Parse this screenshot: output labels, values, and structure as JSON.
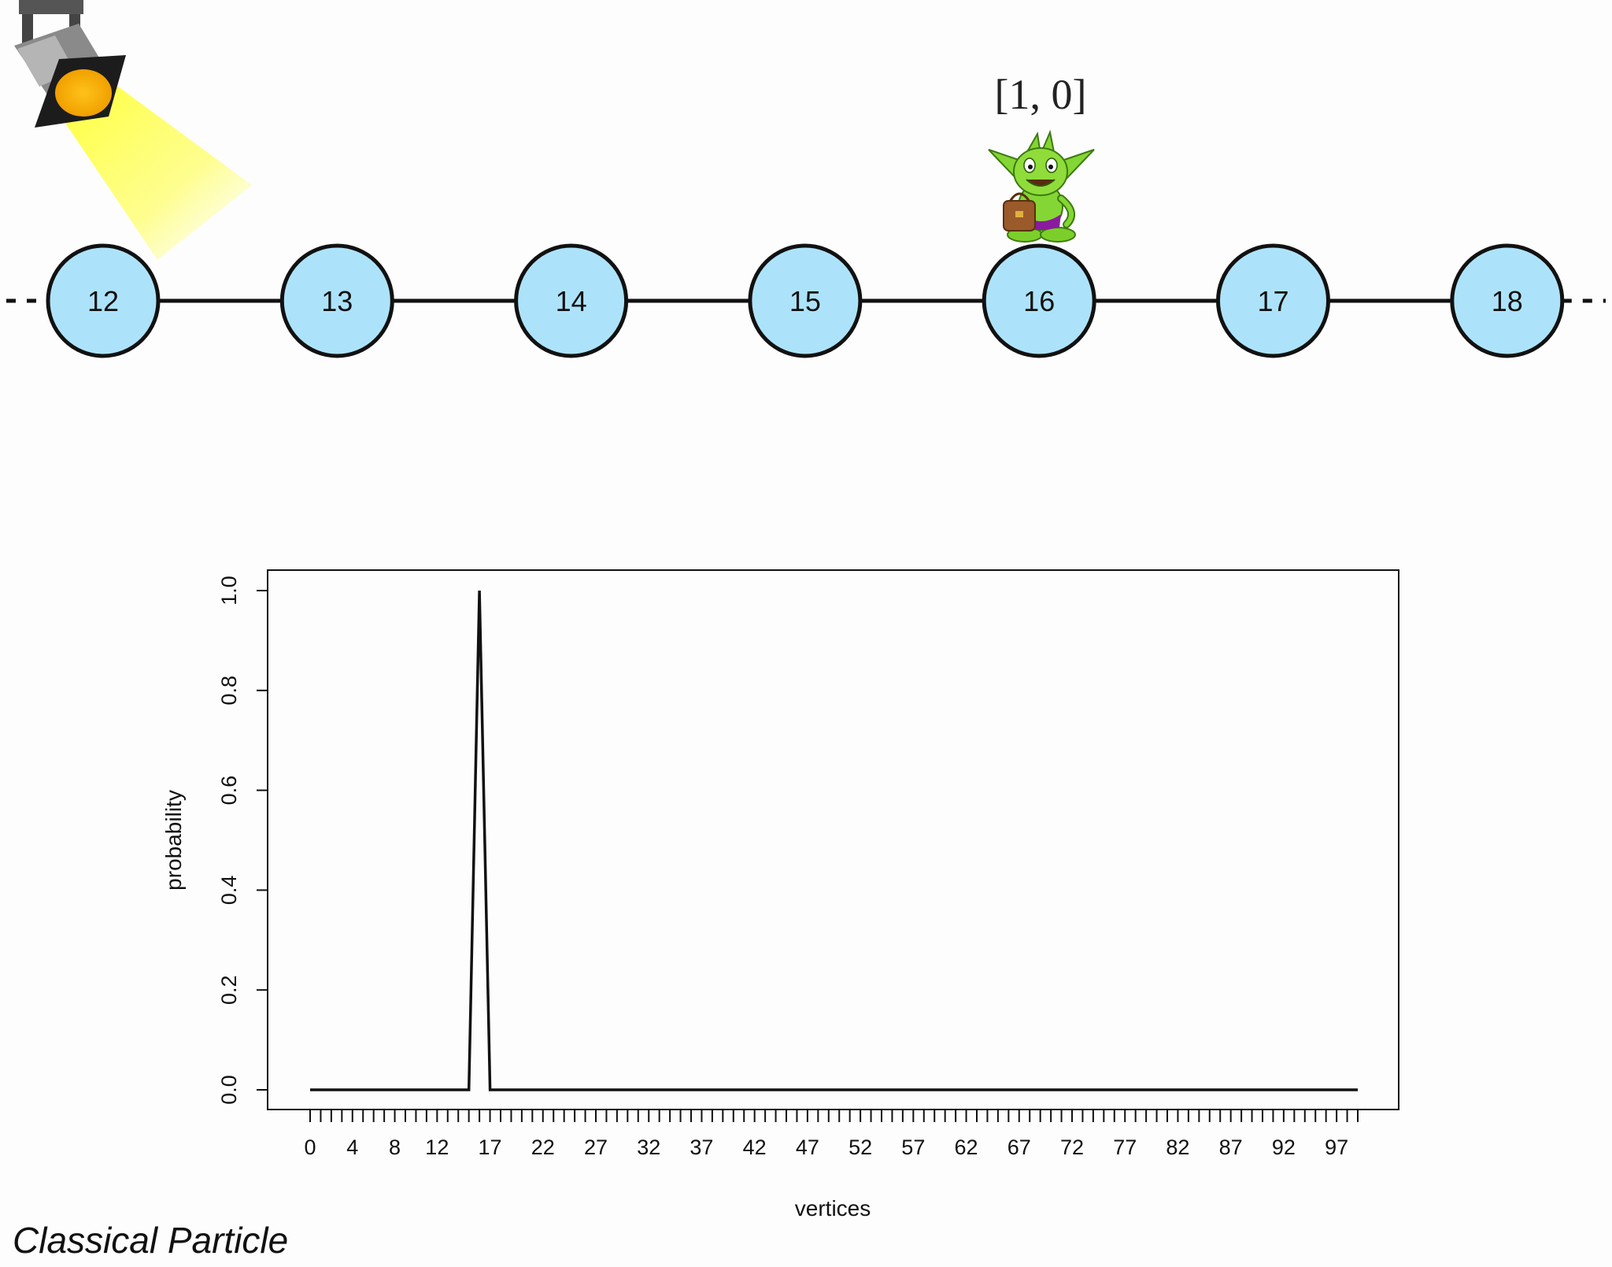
{
  "graph": {
    "nodes": [
      "12",
      "13",
      "14",
      "15",
      "16",
      "17",
      "18"
    ],
    "walker_node": "16",
    "state_label": "[1, 0]",
    "colors": {
      "node_fill": "#ade3fa",
      "stroke": "#111111"
    }
  },
  "chart_data": {
    "type": "line",
    "xlabel": "vertices",
    "ylabel": "probability",
    "xlim": [
      0,
      99
    ],
    "ylim": [
      0,
      1
    ],
    "x_ticks": [
      0,
      1,
      2,
      3,
      4,
      5,
      6,
      7,
      8,
      9,
      10,
      11,
      12,
      13,
      14,
      15,
      16,
      17,
      18,
      19,
      20,
      21,
      22,
      23,
      24,
      25,
      26,
      27,
      28,
      29,
      30,
      31,
      32,
      33,
      34,
      35,
      36,
      37,
      38,
      39,
      40,
      41,
      42,
      43,
      44,
      45,
      46,
      47,
      48,
      49,
      50,
      51,
      52,
      53,
      54,
      55,
      56,
      57,
      58,
      59,
      60,
      61,
      62,
      63,
      64,
      65,
      66,
      67,
      68,
      69,
      70,
      71,
      72,
      73,
      74,
      75,
      76,
      77,
      78,
      79,
      80,
      81,
      82,
      83,
      84,
      85,
      86,
      87,
      88,
      89,
      90,
      91,
      92,
      93,
      94,
      95,
      96,
      97,
      98,
      99
    ],
    "x_tick_labels": [
      "0",
      "4",
      "8",
      "12",
      "17",
      "22",
      "27",
      "32",
      "37",
      "42",
      "47",
      "52",
      "57",
      "62",
      "67",
      "72",
      "77",
      "82",
      "87",
      "92",
      "97"
    ],
    "y_ticks": [
      "0.0",
      "0.2",
      "0.4",
      "0.6",
      "0.8",
      "1.0"
    ],
    "series": [
      {
        "name": "probability",
        "x": [
          0,
          15,
          16,
          17,
          99
        ],
        "values": [
          0,
          0,
          1,
          0,
          0
        ]
      }
    ],
    "color": "#111111"
  },
  "caption": "Classical Particle"
}
